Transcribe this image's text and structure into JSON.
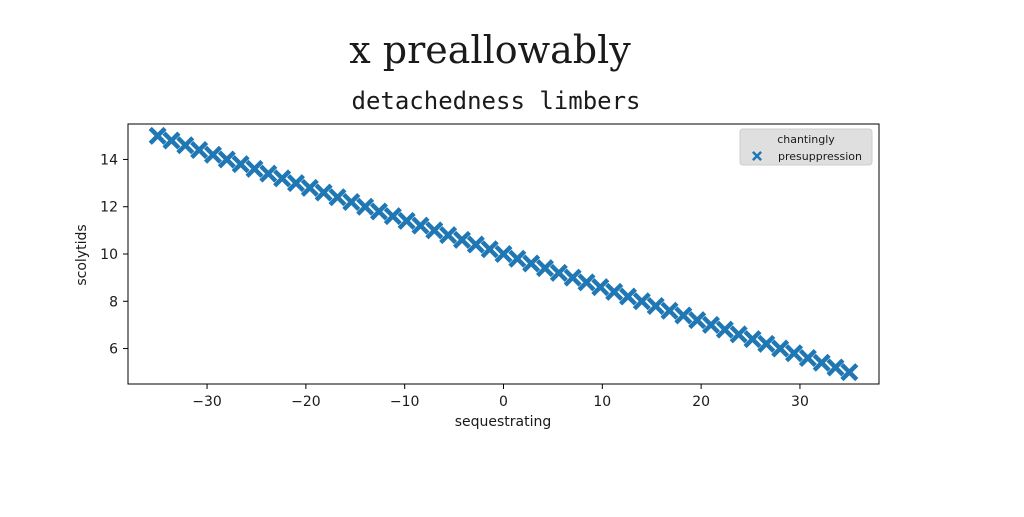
{
  "figure": {
    "title": "x preallowably"
  },
  "chart_data": {
    "type": "scatter",
    "title": "detachedness limbers",
    "xlabel": "sequestrating",
    "ylabel": "scolytids",
    "xlim": [
      -38,
      38
    ],
    "ylim": [
      4.5,
      15.5
    ],
    "xticks": [
      -30,
      -20,
      -10,
      0,
      10,
      20,
      30
    ],
    "yticks": [
      6,
      8,
      10,
      12,
      14
    ],
    "xtick_labels": [
      "−30",
      "−20",
      "−10",
      "0",
      "10",
      "20",
      "30"
    ],
    "ytick_labels": [
      "6",
      "8",
      "10",
      "12",
      "14"
    ],
    "grid": false,
    "legend": {
      "title": "chantingly",
      "placement": "top-right"
    },
    "series": [
      {
        "name": "presuppression",
        "marker": "X",
        "color": "#1f77b4",
        "x_start": -35,
        "x_end": 35,
        "count": 51,
        "y_start": 15,
        "y_end": 5
      }
    ]
  }
}
